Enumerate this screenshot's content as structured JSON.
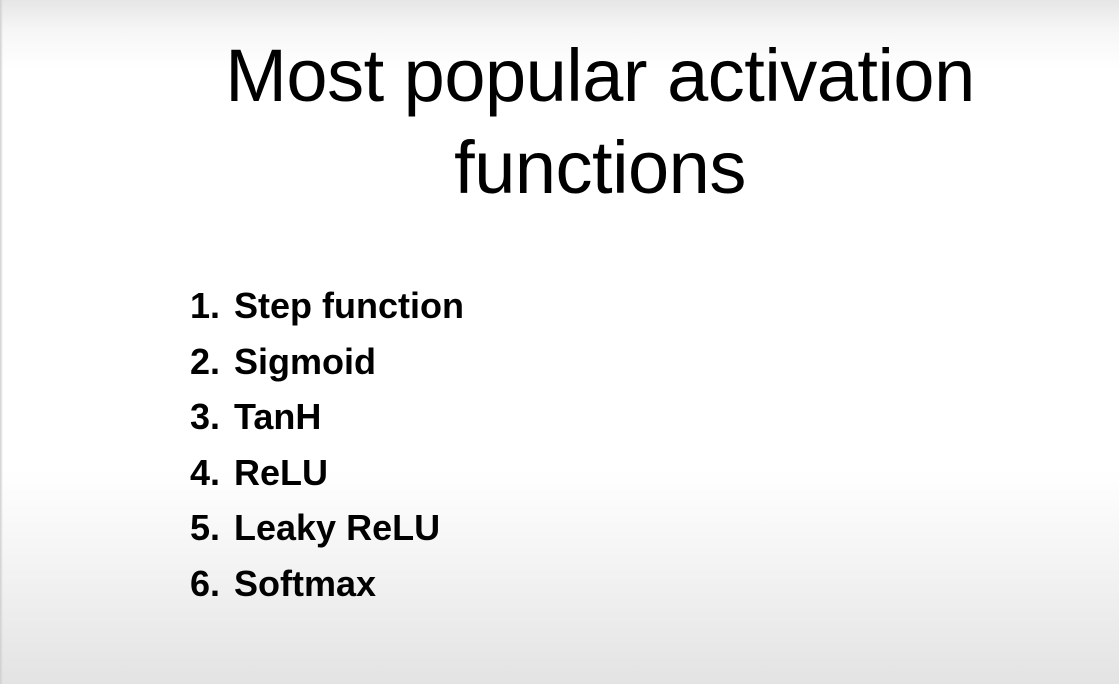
{
  "slide": {
    "title_line1": "Most popular activation",
    "title_line2": "functions",
    "items": [
      {
        "number": "1.",
        "label": "Step function"
      },
      {
        "number": "2.",
        "label": "Sigmoid"
      },
      {
        "number": "3.",
        "label": "TanH"
      },
      {
        "number": "4.",
        "label": "ReLU"
      },
      {
        "number": "5.",
        "label": "Leaky ReLU"
      },
      {
        "number": "6.",
        "label": "Softmax"
      }
    ]
  }
}
